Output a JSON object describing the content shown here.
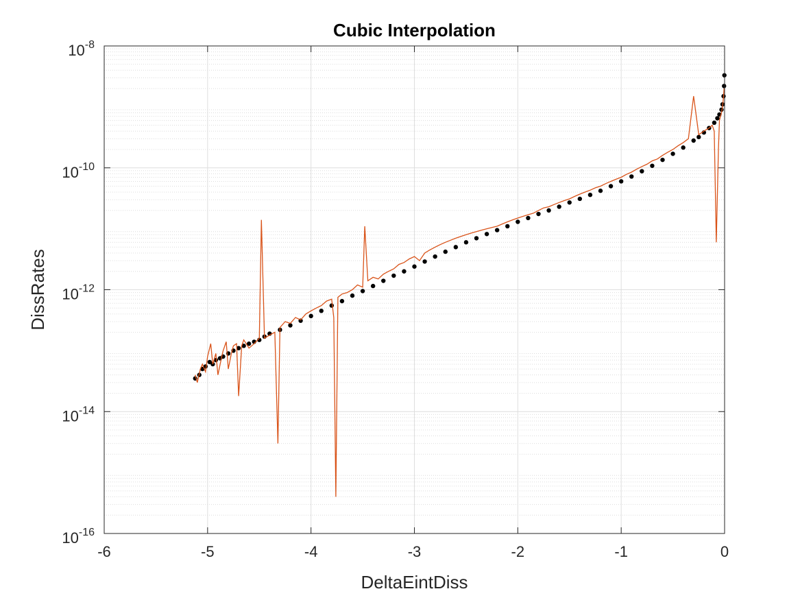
{
  "chart_data": {
    "type": "scatter",
    "title": "Cubic Interpolation",
    "xlabel": "DeltaEintDiss",
    "ylabel": "DissRates",
    "xlim": [
      -6,
      0
    ],
    "ylim": [
      1e-16,
      1e-08
    ],
    "yscale": "log",
    "grid": true,
    "minor_grid": true,
    "x_ticks": [
      {
        "value": -6,
        "label": "-6"
      },
      {
        "value": -5,
        "label": "-5"
      },
      {
        "value": -4,
        "label": "-4"
      },
      {
        "value": -3,
        "label": "-3"
      },
      {
        "value": -2,
        "label": "-2"
      },
      {
        "value": -1,
        "label": "-1"
      },
      {
        "value": 0,
        "label": "0"
      }
    ],
    "y_ticks": [
      {
        "value": 1e-16,
        "base": "10",
        "exponent": "-16"
      },
      {
        "value": 1e-14,
        "base": "10",
        "exponent": "-14"
      },
      {
        "value": 1e-12,
        "base": "10",
        "exponent": "-12"
      },
      {
        "value": 1e-10,
        "base": "10",
        "exponent": "-10"
      },
      {
        "value": 1e-08,
        "base": "10",
        "exponent": "-8"
      }
    ],
    "series": [
      {
        "style": "markers",
        "color": "#000000",
        "x": [
          -5.12,
          -5.08,
          -5.05,
          -5.02,
          -4.98,
          -4.95,
          -4.92,
          -4.88,
          -4.85,
          -4.8,
          -4.75,
          -4.7,
          -4.65,
          -4.6,
          -4.55,
          -4.5,
          -4.45,
          -4.4,
          -4.3,
          -4.2,
          -4.1,
          -4.0,
          -3.9,
          -3.8,
          -3.7,
          -3.6,
          -3.5,
          -3.4,
          -3.3,
          -3.2,
          -3.1,
          -3.0,
          -2.9,
          -2.8,
          -2.7,
          -2.6,
          -2.5,
          -2.4,
          -2.3,
          -2.2,
          -2.1,
          -2.0,
          -1.9,
          -1.8,
          -1.7,
          -1.6,
          -1.5,
          -1.4,
          -1.3,
          -1.2,
          -1.1,
          -1.0,
          -0.9,
          -0.8,
          -0.7,
          -0.6,
          -0.5,
          -0.4,
          -0.3,
          -0.25,
          -0.2,
          -0.15,
          -0.1,
          -0.07,
          -0.05,
          -0.03,
          -0.02,
          -0.01,
          -0.005,
          -0.002
        ],
        "y": [
          3.5e-14,
          4e-14,
          5e-14,
          5.5e-14,
          6.5e-14,
          6e-14,
          7e-14,
          7.5e-14,
          8e-14,
          9e-14,
          1e-13,
          1.1e-13,
          1.2e-13,
          1.3e-13,
          1.4e-13,
          1.5e-13,
          1.7e-13,
          1.9e-13,
          2.2e-13,
          2.6e-13,
          3.1e-13,
          3.7e-13,
          4.5e-13,
          5.5e-13,
          6.5e-13,
          8e-13,
          9.5e-13,
          1.15e-12,
          1.4e-12,
          1.7e-12,
          2e-12,
          2.4e-12,
          2.9e-12,
          3.5e-12,
          4.2e-12,
          5e-12,
          6e-12,
          7e-12,
          8.2e-12,
          9.5e-12,
          1.1e-11,
          1.3e-11,
          1.5e-11,
          1.75e-11,
          2e-11,
          2.3e-11,
          2.7e-11,
          3.1e-11,
          3.6e-11,
          4.2e-11,
          5e-11,
          6e-11,
          7.2e-11,
          8.8e-11,
          1.08e-10,
          1.35e-10,
          1.7e-10,
          2.15e-10,
          2.8e-10,
          3.2e-10,
          3.8e-10,
          4.5e-10,
          5.5e-10,
          6.5e-10,
          7.5e-10,
          9e-10,
          1.1e-09,
          1.5e-09,
          2.2e-09,
          3.3e-09
        ]
      },
      {
        "style": "line",
        "color": "#D95319",
        "x": [
          -5.12,
          -5.1,
          -5.07,
          -5.05,
          -5.02,
          -5.0,
          -4.97,
          -4.95,
          -4.92,
          -4.9,
          -4.87,
          -4.85,
          -4.82,
          -4.8,
          -4.77,
          -4.75,
          -4.72,
          -4.7,
          -4.67,
          -4.65,
          -4.6,
          -4.55,
          -4.5,
          -4.48,
          -4.45,
          -4.4,
          -4.35,
          -4.32,
          -4.3,
          -4.25,
          -4.2,
          -4.15,
          -4.1,
          -4.05,
          -4.0,
          -3.95,
          -3.9,
          -3.85,
          -3.8,
          -3.78,
          -3.76,
          -3.74,
          -3.7,
          -3.65,
          -3.6,
          -3.55,
          -3.5,
          -3.48,
          -3.45,
          -3.4,
          -3.35,
          -3.3,
          -3.25,
          -3.2,
          -3.15,
          -3.1,
          -3.05,
          -3.0,
          -2.95,
          -2.9,
          -2.85,
          -2.8,
          -2.75,
          -2.7,
          -2.65,
          -2.6,
          -2.55,
          -2.5,
          -2.45,
          -2.4,
          -2.35,
          -2.3,
          -2.25,
          -2.2,
          -2.15,
          -2.1,
          -2.05,
          -2.0,
          -1.95,
          -1.9,
          -1.85,
          -1.8,
          -1.75,
          -1.7,
          -1.65,
          -1.6,
          -1.55,
          -1.5,
          -1.45,
          -1.4,
          -1.35,
          -1.3,
          -1.25,
          -1.2,
          -1.15,
          -1.1,
          -1.05,
          -1.0,
          -0.95,
          -0.9,
          -0.85,
          -0.8,
          -0.75,
          -0.7,
          -0.65,
          -0.6,
          -0.55,
          -0.5,
          -0.45,
          -0.4,
          -0.35,
          -0.3,
          -0.25,
          -0.2,
          -0.15,
          -0.12,
          -0.1,
          -0.08,
          -0.06,
          -0.05,
          -0.04,
          -0.03,
          -0.02,
          -0.01,
          -0.005
        ],
        "y": [
          4e-14,
          3e-14,
          5e-14,
          6e-14,
          4.5e-14,
          8e-14,
          1.3e-13,
          6e-14,
          9e-14,
          4e-14,
          7e-14,
          1e-13,
          1.4e-13,
          5e-14,
          9e-14,
          1.2e-13,
          1.3e-13,
          1.8e-14,
          1.2e-13,
          1.5e-13,
          1.1e-13,
          1.3e-13,
          1.6e-13,
          1.4e-11,
          1.6e-13,
          1.8e-13,
          2e-13,
          3e-15,
          2.4e-13,
          3e-13,
          2.8e-13,
          3.5e-13,
          3.2e-13,
          4e-13,
          4.5e-13,
          5e-13,
          5.5e-13,
          6.5e-13,
          7e-13,
          3.5e-13,
          4e-16,
          7.5e-13,
          8.5e-13,
          9e-13,
          1e-12,
          1.2e-12,
          1.1e-12,
          1.1e-11,
          1.4e-12,
          1.6e-12,
          1.5e-12,
          1.8e-12,
          2e-12,
          2.2e-12,
          2.6e-12,
          2.8e-12,
          3.2e-12,
          3.5e-12,
          3e-12,
          4e-12,
          4.5e-12,
          5e-12,
          5.5e-12,
          6e-12,
          6.5e-12,
          7e-12,
          7.5e-12,
          8e-12,
          8.5e-12,
          9e-12,
          9.5e-12,
          1e-11,
          1.05e-11,
          1.1e-11,
          1.2e-11,
          1.3e-11,
          1.4e-11,
          1.5e-11,
          1.6e-11,
          1.7e-11,
          1.8e-11,
          2e-11,
          2.2e-11,
          2.3e-11,
          2.5e-11,
          2.7e-11,
          2.9e-11,
          3.1e-11,
          3.4e-11,
          3.7e-11,
          4e-11,
          4.3e-11,
          4.7e-11,
          5e-11,
          5.5e-11,
          6e-11,
          6.5e-11,
          7e-11,
          7.8e-11,
          8.5e-11,
          9.5e-11,
          1.05e-10,
          1.15e-10,
          1.3e-10,
          1.4e-10,
          1.6e-10,
          1.8e-10,
          2e-10,
          2.3e-10,
          2.6e-10,
          3e-10,
          1.5e-09,
          3.5e-10,
          4e-10,
          4.5e-10,
          5e-10,
          4e-10,
          6e-12,
          2e-10,
          6e-10,
          7e-10,
          8e-10,
          1e-09,
          1.5e-09,
          2e-09
        ]
      }
    ]
  }
}
